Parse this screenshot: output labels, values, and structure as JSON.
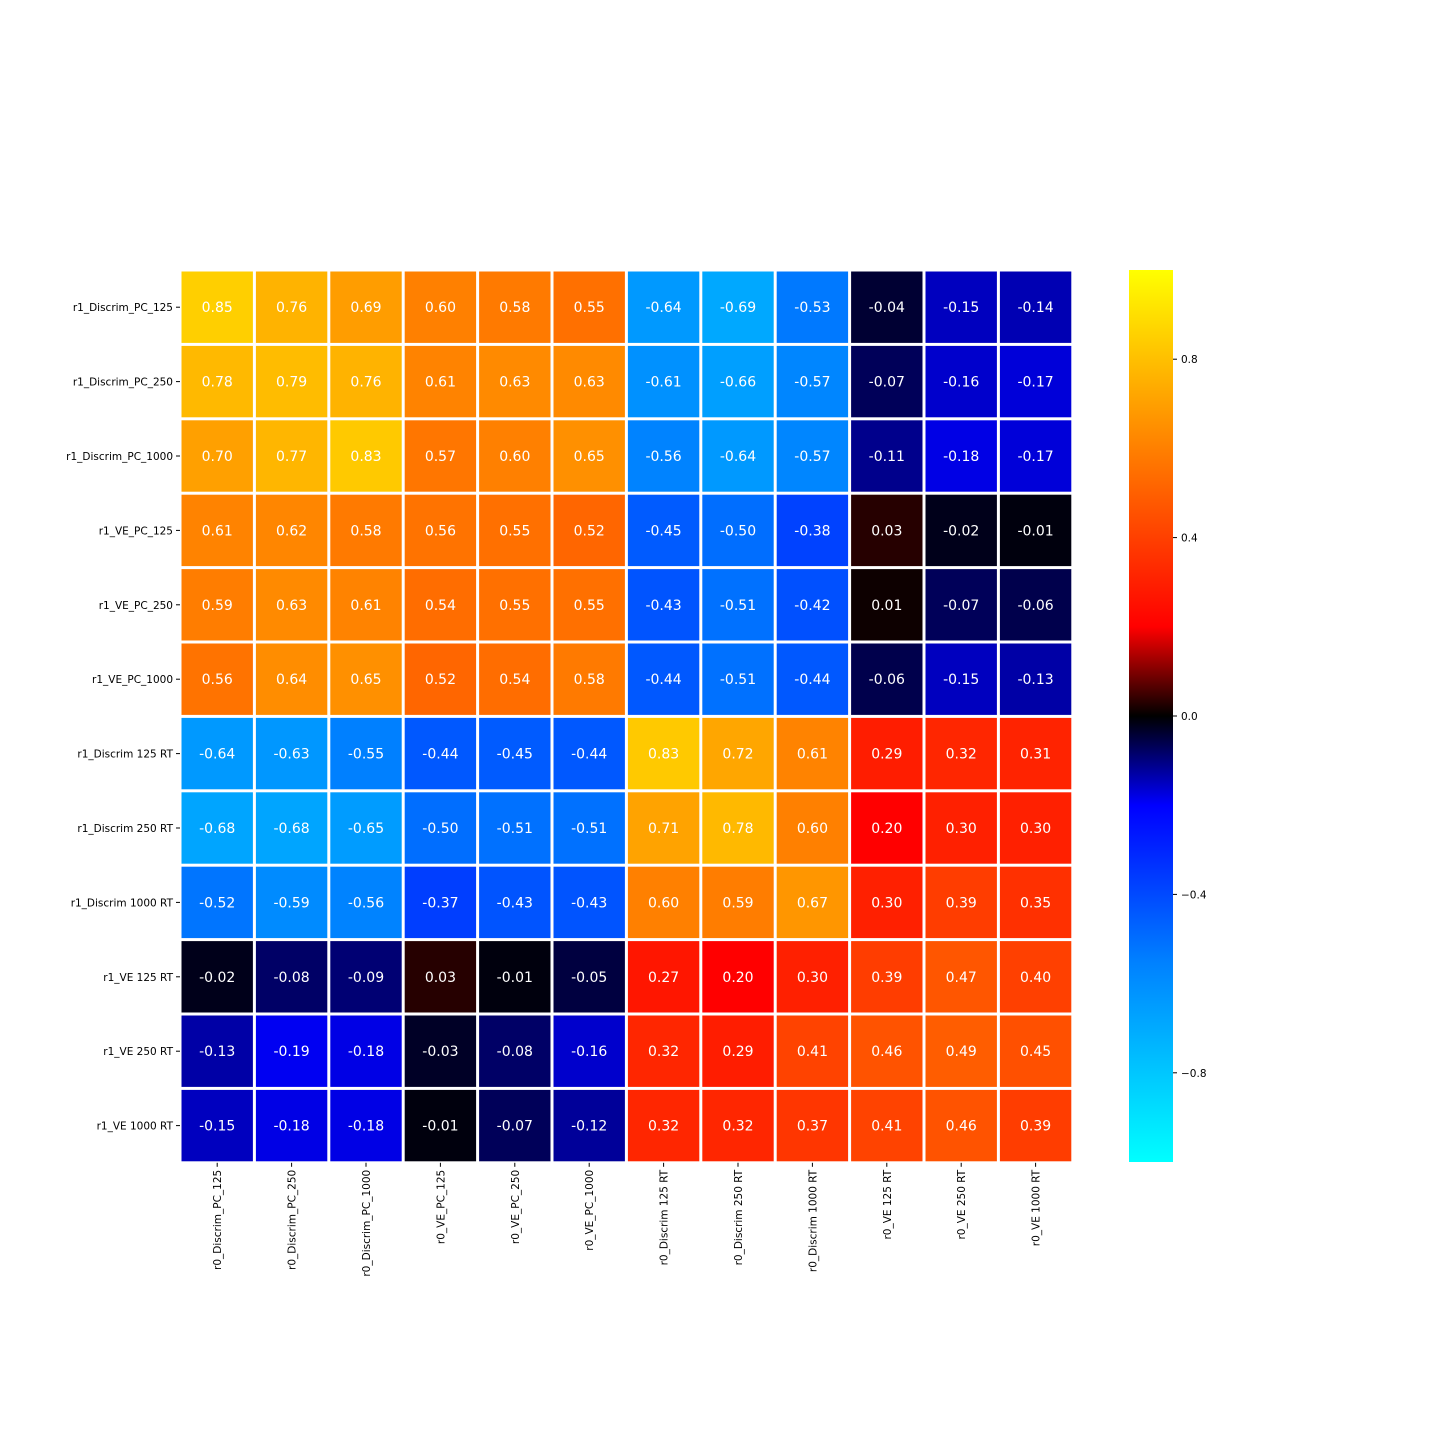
{
  "chart_data": {
    "type": "heatmap",
    "title": "",
    "xlabel": "",
    "ylabel": "",
    "row_labels": [
      "r1_Discrim_PC_125",
      "r1_Discrim_PC_250",
      "r1_Discrim_PC_1000",
      "r1_VE_PC_125",
      "r1_VE_PC_250",
      "r1_VE_PC_1000",
      "r1_Discrim 125 RT",
      "r1_Discrim 250 RT",
      "r1_Discrim 1000 RT",
      "r1_VE 125 RT",
      "r1_VE 250 RT",
      "r1_VE 1000 RT"
    ],
    "col_labels": [
      "r0_Discrim_PC_125",
      "r0_Discrim_PC_250",
      "r0_Discrim_PC_1000",
      "r0_VE_PC_125",
      "r0_VE_PC_250",
      "r0_VE_PC_1000",
      "r0_Discrim 125 RT",
      "r0_Discrim 250 RT",
      "r0_Discrim 1000 RT",
      "r0_VE 125 RT",
      "r0_VE 250 RT",
      "r0_VE 1000 RT"
    ],
    "values": [
      [
        0.85,
        0.76,
        0.69,
        0.6,
        0.58,
        0.55,
        -0.64,
        -0.69,
        -0.53,
        -0.04,
        -0.15,
        -0.14
      ],
      [
        0.78,
        0.79,
        0.76,
        0.61,
        0.63,
        0.63,
        -0.61,
        -0.66,
        -0.57,
        -0.07,
        -0.16,
        -0.17
      ],
      [
        0.7,
        0.77,
        0.83,
        0.57,
        0.6,
        0.65,
        -0.56,
        -0.64,
        -0.57,
        -0.11,
        -0.18,
        -0.17
      ],
      [
        0.61,
        0.62,
        0.58,
        0.56,
        0.55,
        0.52,
        -0.45,
        -0.5,
        -0.38,
        0.03,
        -0.02,
        -0.01
      ],
      [
        0.59,
        0.63,
        0.61,
        0.54,
        0.55,
        0.55,
        -0.43,
        -0.51,
        -0.42,
        0.01,
        -0.07,
        -0.06
      ],
      [
        0.56,
        0.64,
        0.65,
        0.52,
        0.54,
        0.58,
        -0.44,
        -0.51,
        -0.44,
        -0.06,
        -0.15,
        -0.13
      ],
      [
        -0.64,
        -0.63,
        -0.55,
        -0.44,
        -0.45,
        -0.44,
        0.83,
        0.72,
        0.61,
        0.29,
        0.32,
        0.31
      ],
      [
        -0.68,
        -0.68,
        -0.65,
        -0.5,
        -0.51,
        -0.51,
        0.71,
        0.78,
        0.6,
        0.2,
        0.3,
        0.3
      ],
      [
        -0.52,
        -0.59,
        -0.56,
        -0.37,
        -0.43,
        -0.43,
        0.6,
        0.59,
        0.67,
        0.3,
        0.39,
        0.35
      ],
      [
        -0.02,
        -0.08,
        -0.09,
        0.03,
        -0.01,
        -0.05,
        0.27,
        0.2,
        0.3,
        0.39,
        0.47,
        0.4
      ],
      [
        -0.13,
        -0.19,
        -0.18,
        -0.03,
        -0.08,
        -0.16,
        0.32,
        0.29,
        0.41,
        0.46,
        0.49,
        0.45
      ],
      [
        -0.15,
        -0.18,
        -0.18,
        -0.01,
        -0.07,
        -0.12,
        0.32,
        0.32,
        0.37,
        0.41,
        0.46,
        0.39
      ]
    ],
    "colorbar": {
      "range": [
        -1,
        1
      ],
      "ticks": [
        0.8,
        0.4,
        0.0,
        -0.4,
        -0.8
      ],
      "tick_labels": [
        "0.8",
        "0.4",
        "0.0",
        "−0.4",
        "−0.8"
      ],
      "colormap_stops": [
        {
          "v": -1.0,
          "color": "#00ffff"
        },
        {
          "v": -0.55,
          "color": "#0080ff"
        },
        {
          "v": -0.2,
          "color": "#0000ff"
        },
        {
          "v": 0.0,
          "color": "#000000"
        },
        {
          "v": 0.2,
          "color": "#ff0000"
        },
        {
          "v": 0.6,
          "color": "#ff8000"
        },
        {
          "v": 1.0,
          "color": "#ffff00"
        }
      ]
    },
    "annotation_color": "#ffffff",
    "grid_line_color": "#ffffff",
    "grid": false
  }
}
